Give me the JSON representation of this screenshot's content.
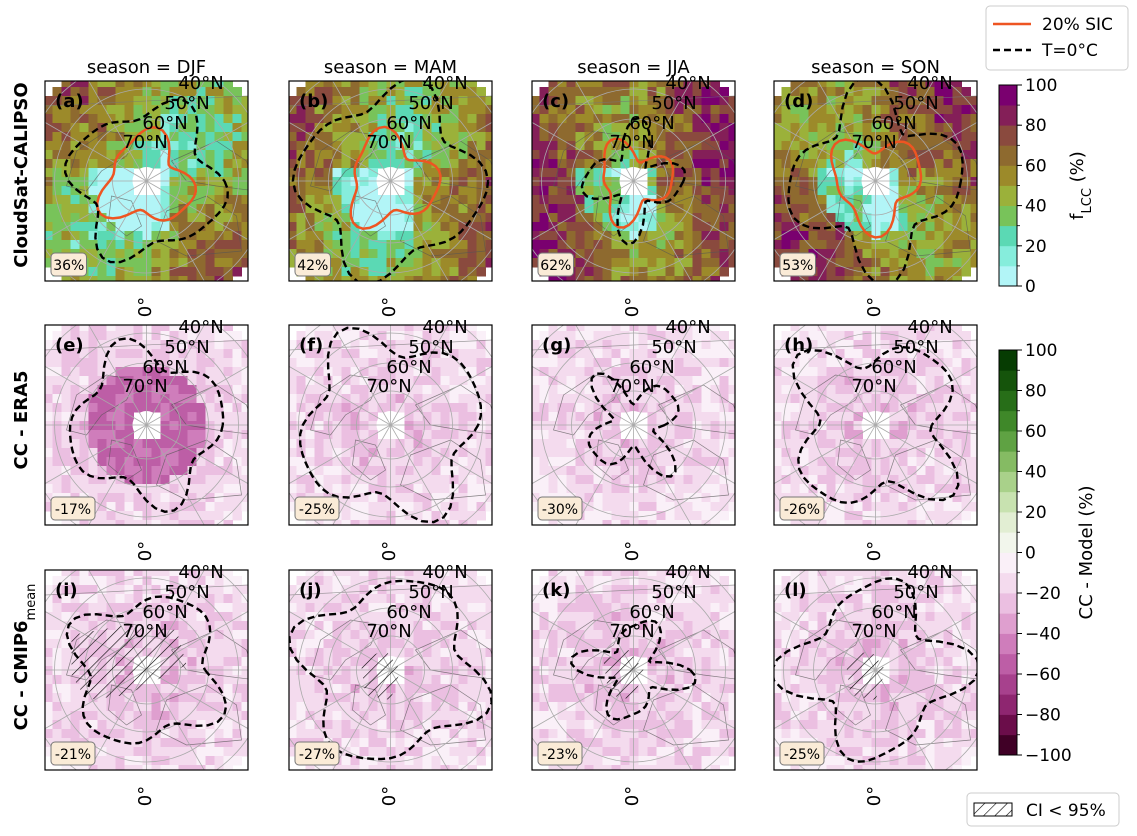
{
  "chart_data": {
    "type": "heatmap",
    "projection": "north-polar-stereographic",
    "seasons": [
      "DJF",
      "MAM",
      "JJA",
      "SON"
    ],
    "season_title_prefix": "season = ",
    "row_labels": [
      "CloudSat-CALIPSO",
      "CC - ERA5",
      "CC - CMIP6"
    ],
    "row_label_subscript": "mean",
    "latitude_labels": [
      "40°N",
      "50°N",
      "60°N",
      "70°N"
    ],
    "longitude_label": "0°",
    "panels": [
      {
        "letter": "(a)",
        "row": 0,
        "season": "DJF",
        "mean": "36%",
        "mean_value": 36
      },
      {
        "letter": "(b)",
        "row": 0,
        "season": "MAM",
        "mean": "42%",
        "mean_value": 42
      },
      {
        "letter": "(c)",
        "row": 0,
        "season": "JJA",
        "mean": "62%",
        "mean_value": 62
      },
      {
        "letter": "(d)",
        "row": 0,
        "season": "SON",
        "mean": "53%",
        "mean_value": 53
      },
      {
        "letter": "(e)",
        "row": 1,
        "season": "DJF",
        "mean": "-17%",
        "mean_value": -17
      },
      {
        "letter": "(f)",
        "row": 1,
        "season": "MAM",
        "mean": "-25%",
        "mean_value": -25
      },
      {
        "letter": "(g)",
        "row": 1,
        "season": "JJA",
        "mean": "-30%",
        "mean_value": -30
      },
      {
        "letter": "(h)",
        "row": 1,
        "season": "SON",
        "mean": "-26%",
        "mean_value": -26
      },
      {
        "letter": "(i)",
        "row": 2,
        "season": "DJF",
        "mean": "-21%",
        "mean_value": -21
      },
      {
        "letter": "(j)",
        "row": 2,
        "season": "MAM",
        "mean": "-27%",
        "mean_value": -27
      },
      {
        "letter": "(k)",
        "row": 2,
        "season": "JJA",
        "mean": "-23%",
        "mean_value": -23
      },
      {
        "letter": "(l)",
        "row": 2,
        "season": "SON",
        "mean": "-25%",
        "mean_value": -25
      }
    ],
    "colorbars": [
      {
        "label": "f",
        "label_subscript": "LCC",
        "label_suffix": " (%)",
        "range": [
          0,
          100
        ],
        "ticks": [
          0,
          20,
          40,
          60,
          80,
          100
        ],
        "tick_labels": [
          "0",
          "20",
          "40",
          "60",
          "80",
          "100"
        ],
        "colors": [
          "#b2f5f7",
          "#86eddc",
          "#5bd9b4",
          "#78c35a",
          "#9bb13a",
          "#9c8a2a",
          "#8e6a2f",
          "#8a4a3e",
          "#841f58",
          "#7a006f"
        ]
      },
      {
        "label": "CC - Model (%)",
        "range": [
          -100,
          100
        ],
        "ticks": [
          -100,
          -80,
          -60,
          -40,
          -20,
          0,
          20,
          40,
          60,
          80,
          100
        ],
        "tick_labels": [
          "−100",
          "−80",
          "−60",
          "−40",
          "−20",
          "0",
          "20",
          "40",
          "60",
          "80",
          "100"
        ],
        "colors": [
          "#400026",
          "#6b0d4a",
          "#8e2670",
          "#a7418d",
          "#bd5ea6",
          "#cf7dbb",
          "#df9fcf",
          "#ebbfe1",
          "#f4dbee",
          "#faf0f8",
          "#f2f6ec",
          "#e2eed3",
          "#c8e2b0",
          "#a9d18a",
          "#85bb63",
          "#5fa243",
          "#3f8829",
          "#276e18",
          "#15540b",
          "#063c02"
        ]
      }
    ],
    "legend": {
      "placement": "top-right",
      "entries": [
        {
          "label": "20% SIC",
          "style": "solid",
          "color": "#ee5522"
        },
        {
          "label": "T=0°C",
          "style": "dashed",
          "color": "#000000"
        }
      ]
    },
    "hatch_legend": {
      "label": "CI < 95%",
      "placement": "bottom-right"
    }
  }
}
